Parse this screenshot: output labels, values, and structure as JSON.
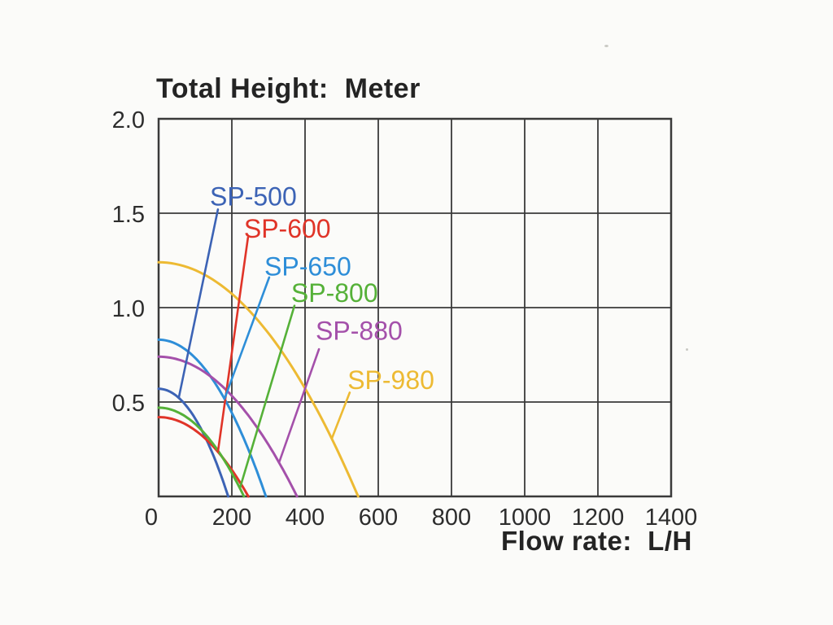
{
  "title": "Total Height:  Meter",
  "x_axis": {
    "label": "Flow rate:  L/H",
    "tick_values": [
      0,
      200,
      400,
      600,
      800,
      1000,
      1200,
      1400
    ]
  },
  "y_axis": {
    "tick_values": [
      0.5,
      1.0,
      1.5,
      2.0
    ],
    "tick_labels": [
      "0.5",
      "1.0",
      "1.5",
      "2.0"
    ]
  },
  "chart_data": {
    "type": "line",
    "title": "Total Height:  Meter",
    "xlabel": "Flow rate:  L/H",
    "ylabel": "Total Height: Meter",
    "xlim": [
      0,
      1400
    ],
    "ylim": [
      0,
      2.0
    ],
    "grid": true,
    "legend_position": "inline-labels-with-leader-lines",
    "model": "H = H0 * (1 - (Q/Qmax)^2)",
    "axis_color": "#3a3a3a",
    "tick_text_color": "#2d2d2d",
    "series": [
      {
        "name": "SP-500",
        "color": "#3c63b5",
        "shutoff_head_m": 0.57,
        "max_flow_lh": 190,
        "points": [
          [
            0,
            0.57
          ],
          [
            50,
            0.53
          ],
          [
            100,
            0.41
          ],
          [
            150,
            0.21
          ],
          [
            190,
            0
          ]
        ],
        "label": {
          "q": 140,
          "h": 1.54
        },
        "leader": {
          "start": {
            "q": 162,
            "h": 1.52
          },
          "end_q": 55
        }
      },
      {
        "name": "SP-600",
        "color": "#e03428",
        "shutoff_head_m": 0.42,
        "max_flow_lh": 245,
        "points": [
          [
            0,
            0.42
          ],
          [
            60,
            0.39
          ],
          [
            120,
            0.32
          ],
          [
            180,
            0.19
          ],
          [
            245,
            0
          ]
        ],
        "label": {
          "q": 233,
          "h": 1.37
        },
        "leader": {
          "start": {
            "q": 244,
            "h": 1.37
          },
          "end_q": 162
        }
      },
      {
        "name": "SP-650",
        "color": "#2e8ed8",
        "shutoff_head_m": 0.83,
        "max_flow_lh": 293,
        "points": [
          [
            0,
            0.83
          ],
          [
            75,
            0.78
          ],
          [
            150,
            0.61
          ],
          [
            225,
            0.34
          ],
          [
            293,
            0
          ]
        ],
        "label": {
          "q": 289,
          "h": 1.17
        },
        "leader": {
          "start": {
            "q": 302,
            "h": 1.16
          },
          "end_q": 180
        }
      },
      {
        "name": "SP-800",
        "color": "#55b138",
        "shutoff_head_m": 0.47,
        "max_flow_lh": 233,
        "points": [
          [
            0,
            0.47
          ],
          [
            60,
            0.44
          ],
          [
            120,
            0.35
          ],
          [
            180,
            0.19
          ],
          [
            233,
            0
          ]
        ],
        "label": {
          "q": 362,
          "h": 1.03
        },
        "leader": {
          "start": {
            "q": 371,
            "h": 1.01
          },
          "end_q": 222
        }
      },
      {
        "name": "SP-880",
        "color": "#a450aa",
        "shutoff_head_m": 0.74,
        "max_flow_lh": 378,
        "points": [
          [
            0,
            0.74
          ],
          [
            95,
            0.69
          ],
          [
            190,
            0.55
          ],
          [
            285,
            0.32
          ],
          [
            378,
            0
          ]
        ],
        "label": {
          "q": 429,
          "h": 0.83
        },
        "leader": {
          "start": {
            "q": 438,
            "h": 0.78
          },
          "end_q": 329
        }
      },
      {
        "name": "SP-980",
        "color": "#edba33",
        "shutoff_head_m": 1.24,
        "max_flow_lh": 545,
        "points": [
          [
            0,
            1.24
          ],
          [
            135,
            1.16
          ],
          [
            270,
            0.94
          ],
          [
            405,
            0.55
          ],
          [
            545,
            0
          ]
        ],
        "label": {
          "q": 516,
          "h": 0.57
        },
        "leader": {
          "start": {
            "q": 522,
            "h": 0.55
          },
          "end_q": 473
        }
      }
    ]
  }
}
